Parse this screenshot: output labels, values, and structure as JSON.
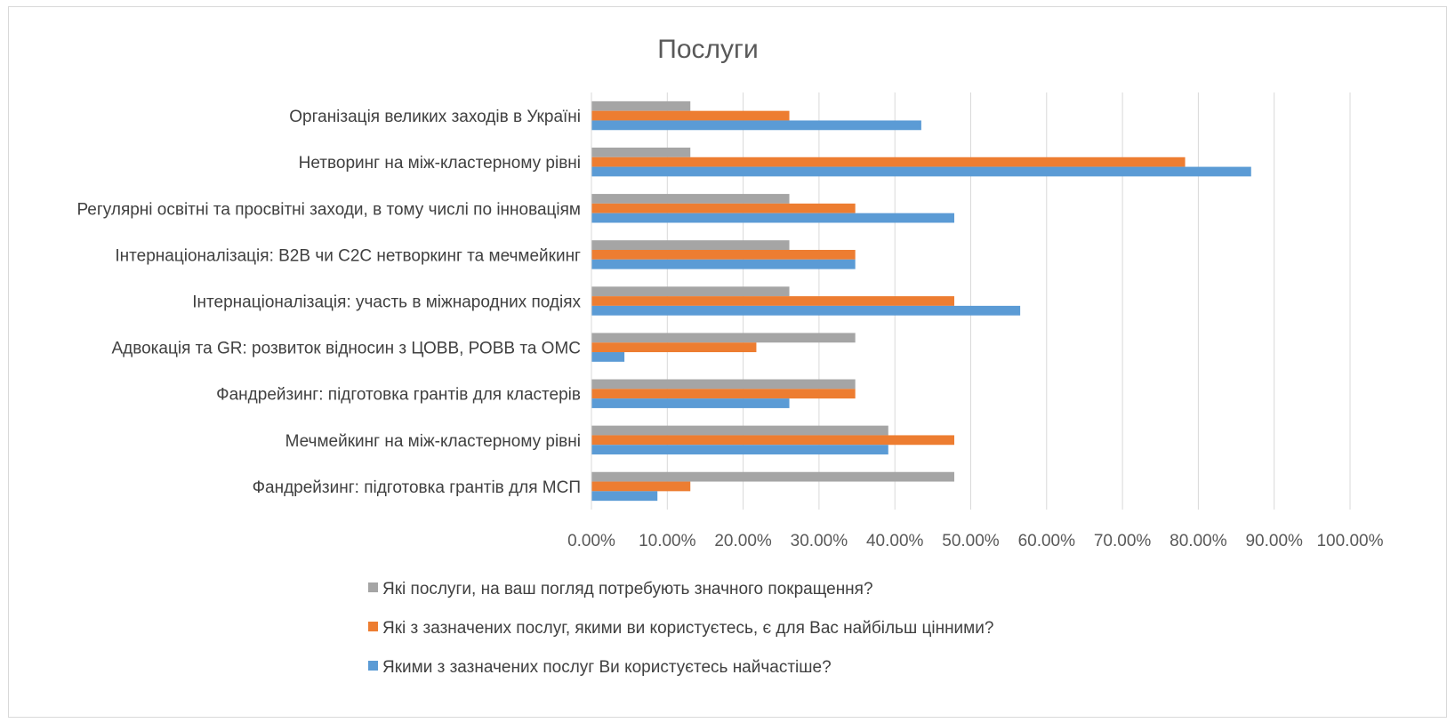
{
  "chart_data": {
    "type": "bar",
    "orientation": "horizontal",
    "title": "Послуги",
    "categories": [
      "Організація великих заходів в Україні",
      "Нетворинг на між-кластерному рівні",
      "Регулярні освітні та просвітні заходи, в тому числі по інноваціям",
      "Інтернаціоналізація: В2В чи С2С нетворкинг та мечмейкинг",
      "Інтернаціоналізація: участь в міжнародних подіях",
      "Адвокація та GR: розвиток відносин з ЦОВВ, РОВВ та ОМС",
      "Фандрейзинг: підготовка грантів для кластерів",
      "Мечмейкинг на між-кластерному рівні",
      "Фандрейзинг: підготовка грантів для МСП"
    ],
    "series": [
      {
        "name": "Які послуги, на ваш погляд потребують значного покращення?",
        "color": "#a5a5a5",
        "values": [
          13.04,
          13.04,
          26.09,
          26.09,
          26.09,
          34.78,
          34.78,
          39.13,
          47.83
        ]
      },
      {
        "name": "Які з зазначених послуг, якими ви користуєтесь, є для Вас найбільш цінними?",
        "color": "#ed7d31",
        "values": [
          26.09,
          78.26,
          34.78,
          34.78,
          47.83,
          21.74,
          34.78,
          47.83,
          13.04
        ]
      },
      {
        "name": "Якими з зазначених послуг Ви користуєтесь найчастіше?",
        "color": "#5b9bd5",
        "values": [
          43.48,
          86.96,
          47.83,
          34.78,
          56.52,
          4.35,
          26.09,
          39.13,
          8.7
        ]
      }
    ],
    "xlim": [
      0,
      100
    ],
    "x_ticks": [
      0,
      10,
      20,
      30,
      40,
      50,
      60,
      70,
      80,
      90,
      100
    ],
    "x_tick_labels": [
      "0.00%",
      "10.00%",
      "20.00%",
      "30.00%",
      "40.00%",
      "50.00%",
      "60.00%",
      "70.00%",
      "80.00%",
      "90.00%",
      "100.00%"
    ],
    "grid": true,
    "legend_position": "bottom"
  }
}
